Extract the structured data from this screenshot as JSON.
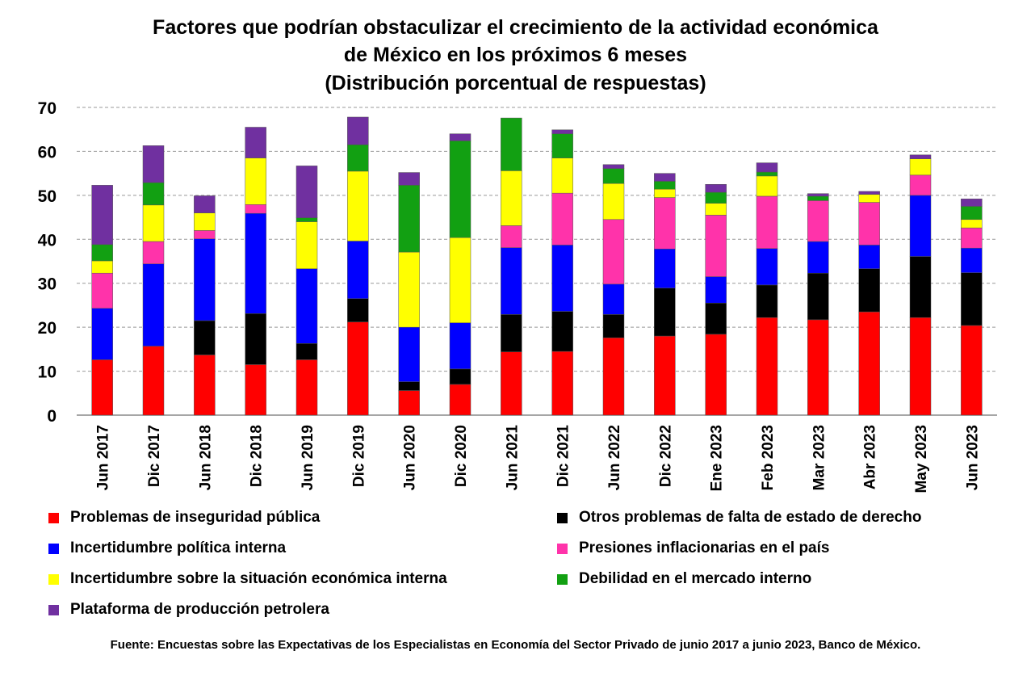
{
  "chart_data": {
    "type": "bar",
    "stacked": true,
    "title_lines": [
      "Factores que podrían obstaculizar el crecimiento de la actividad económica",
      "de México en los próximos 6 meses",
      "(Distribución porcentual de respuestas)"
    ],
    "xlabel": "",
    "ylabel": "",
    "ylim": [
      0,
      70
    ],
    "yticks": [
      "0",
      "10",
      "20",
      "30",
      "40",
      "50",
      "60",
      "70"
    ],
    "grid": true,
    "legend_position": "bottom",
    "categories": [
      "Jun 2017",
      "Dic 2017",
      "Jun 2018",
      "Dic 2018",
      "Jun 2019",
      "Dic 2019",
      "Jun 2020",
      "Dic 2020",
      "Jun 2021",
      "Dic 2021",
      "Jun 2022",
      "Dic 2022",
      "Ene 2023",
      "Feb 2023",
      "Mar 2023",
      "Abr 2023",
      "May 2023",
      "Jun 2023"
    ],
    "series": [
      {
        "name": "Problemas de inseguridad pública",
        "color": "#ff0000",
        "values": [
          12.6,
          15.7,
          13.7,
          11.5,
          12.6,
          21.2,
          5.6,
          7.0,
          14.4,
          14.5,
          17.6,
          18.0,
          18.4,
          22.2,
          21.7,
          23.5,
          22.2,
          20.4
        ]
      },
      {
        "name": "Otros problemas de falta de estado de derecho",
        "color": "#000000",
        "values": [
          0.0,
          0.0,
          7.8,
          11.6,
          3.7,
          5.3,
          2.0,
          3.5,
          8.5,
          9.1,
          5.3,
          10.9,
          7.1,
          7.4,
          10.6,
          9.8,
          13.9,
          12.0
        ]
      },
      {
        "name": "Incertidumbre política interna",
        "color": "#0000ff",
        "values": [
          11.7,
          18.7,
          18.6,
          22.8,
          17.0,
          13.1,
          12.4,
          10.5,
          15.2,
          15.1,
          6.9,
          8.9,
          6.0,
          8.3,
          7.2,
          5.4,
          13.9,
          5.6
        ]
      },
      {
        "name": "Presiones inflacionarias en el país",
        "color": "#ff33aa",
        "values": [
          8.0,
          5.1,
          1.9,
          2.0,
          0.0,
          0.0,
          0.0,
          0.0,
          5.0,
          11.8,
          14.7,
          11.7,
          14.0,
          11.9,
          9.3,
          9.7,
          4.6,
          4.6
        ]
      },
      {
        "name": "Incertidumbre sobre la situación económica interna",
        "color": "#ffff00",
        "values": [
          2.8,
          8.3,
          4.0,
          10.6,
          10.7,
          15.9,
          17.1,
          19.4,
          12.5,
          8.0,
          8.2,
          1.9,
          2.7,
          4.6,
          0.0,
          1.8,
          3.7,
          1.9
        ]
      },
      {
        "name": "Debilidad en el mercado interno",
        "color": "#12a012",
        "values": [
          3.7,
          5.1,
          0.0,
          0.0,
          0.9,
          6.0,
          15.2,
          22.0,
          12.0,
          5.5,
          3.4,
          1.8,
          2.5,
          0.9,
          1.0,
          0.0,
          0.0,
          3.0
        ]
      },
      {
        "name": "Plataforma de producción petrolera",
        "color": "#7030a0",
        "values": [
          13.5,
          8.4,
          3.9,
          7.0,
          11.8,
          6.3,
          2.9,
          1.6,
          0.0,
          0.9,
          0.9,
          1.8,
          1.8,
          2.1,
          0.6,
          0.7,
          0.9,
          1.7
        ]
      }
    ],
    "source_note": "Fuente: Encuestas sobre las Expectativas de los Especialistas en Economía del Sector Privado de junio 2017 a junio 2023, Banco de México."
  }
}
